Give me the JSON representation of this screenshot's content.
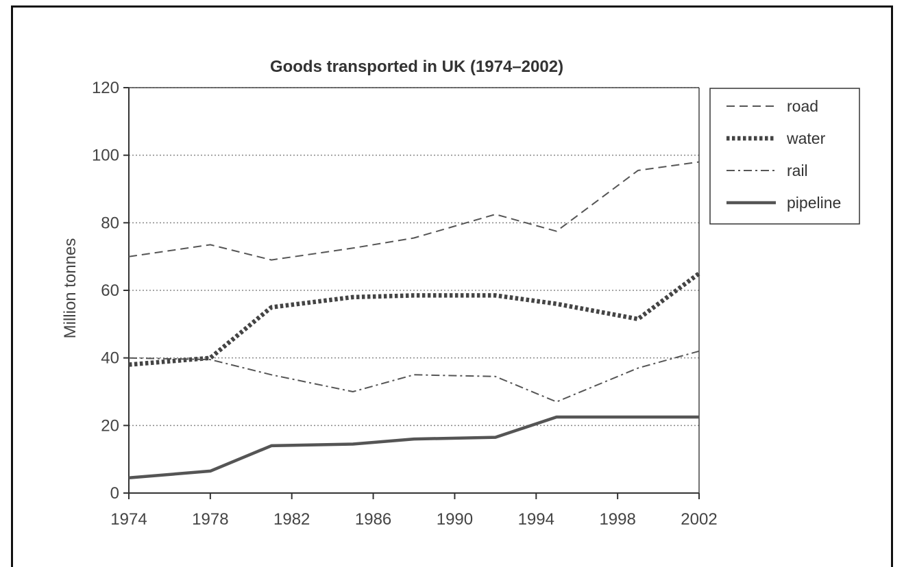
{
  "chart_data": {
    "type": "line",
    "title": "Goods transported in UK (1974–2002)",
    "xlabel": "",
    "ylabel": "Million tonnes",
    "xlim": [
      1974,
      2002
    ],
    "ylim": [
      0,
      120
    ],
    "x_ticks": [
      "1974",
      "1978",
      "1982",
      "1986",
      "1990",
      "1994",
      "1998",
      "2002"
    ],
    "y_ticks": [
      "0",
      "20",
      "40",
      "60",
      "80",
      "100",
      "120"
    ],
    "grid": "horizontal dotted",
    "legend_position": "right",
    "series": [
      {
        "name": "road",
        "style": "dashed",
        "color": "#555555",
        "x": [
          1974,
          1978,
          1981,
          1985,
          1988,
          1992,
          1995,
          1999,
          2002
        ],
        "y": [
          70,
          73.5,
          69,
          72.5,
          75.5,
          82.5,
          77.5,
          95.5,
          98
        ]
      },
      {
        "name": "water",
        "style": "dotted-thick",
        "color": "#444444",
        "x": [
          1974,
          1978,
          1981,
          1985,
          1988,
          1992,
          1995,
          1999,
          2002
        ],
        "y": [
          38,
          40,
          55,
          58,
          58.5,
          58.5,
          56,
          51.5,
          65
        ]
      },
      {
        "name": "rail",
        "style": "dash-dot",
        "color": "#555555",
        "x": [
          1974,
          1978,
          1981,
          1985,
          1988,
          1992,
          1995,
          1999,
          2002
        ],
        "y": [
          40,
          39.5,
          35,
          30,
          35,
          34.5,
          27,
          37,
          42
        ]
      },
      {
        "name": "pipeline",
        "style": "solid",
        "color": "#555555",
        "x": [
          1974,
          1978,
          1981,
          1985,
          1988,
          1992,
          1995,
          1999,
          2002
        ],
        "y": [
          4.5,
          6.5,
          14,
          14.5,
          16,
          16.5,
          22.5,
          22.5,
          22.5
        ]
      }
    ]
  }
}
